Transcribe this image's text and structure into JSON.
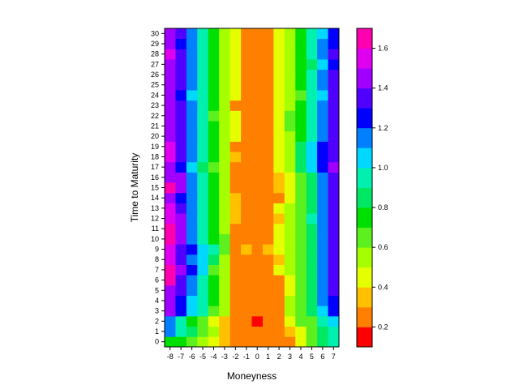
{
  "chart_data": {
    "type": "heatmap",
    "title": "",
    "xlabel": "Moneyness",
    "ylabel": "Time to Maturity",
    "x": [
      -8,
      -7,
      -6,
      -5,
      -4,
      -3,
      -2,
      -1,
      0,
      1,
      2,
      3,
      4,
      5,
      6,
      7
    ],
    "y": [
      0,
      1,
      2,
      3,
      4,
      5,
      6,
      7,
      8,
      9,
      10,
      11,
      12,
      13,
      14,
      15,
      16,
      17,
      18,
      19,
      20,
      21,
      22,
      23,
      24,
      25,
      26,
      27,
      28,
      29,
      30
    ],
    "color_scale": {
      "min": 0.1,
      "max": 1.7,
      "step": 0.1,
      "ticks": [
        "0.2",
        "0.4",
        "0.6",
        "0.8",
        "1.0",
        "1.2",
        "1.4",
        "1.6"
      ],
      "colors": [
        "#ff0000",
        "#ff8000",
        "#ffc000",
        "#e6ff00",
        "#a6ff00",
        "#5cf01e",
        "#00e000",
        "#00e864",
        "#00f0b0",
        "#00d8ff",
        "#0080ff",
        "#0000ff",
        "#5000ff",
        "#a000ff",
        "#e000f0",
        "#ff00b0"
      ]
    },
    "z": [
      [
        0.75,
        0.72,
        0.65,
        0.52,
        0.46,
        0.34,
        0.2,
        0.2,
        0.2,
        0.2,
        0.2,
        0.25,
        0.45,
        0.6,
        0.8,
        0.95
      ],
      [
        1.2,
        0.95,
        0.85,
        0.62,
        0.52,
        0.36,
        0.2,
        0.2,
        0.2,
        0.2,
        0.2,
        0.35,
        0.48,
        0.62,
        0.8,
        0.9
      ],
      [
        1.2,
        0.95,
        0.75,
        0.62,
        0.48,
        0.35,
        0.2,
        0.2,
        0.1,
        0.2,
        0.2,
        0.45,
        0.6,
        0.7,
        0.95,
        1.05
      ],
      [
        1.45,
        1.25,
        1.05,
        0.9,
        0.65,
        0.55,
        0.3,
        0.2,
        0.2,
        0.2,
        0.3,
        0.5,
        0.65,
        0.8,
        1.05,
        1.3
      ],
      [
        1.5,
        1.25,
        1.05,
        0.9,
        0.75,
        0.55,
        0.3,
        0.2,
        0.2,
        0.2,
        0.3,
        0.52,
        0.65,
        0.8,
        1.1,
        1.3
      ],
      [
        1.5,
        1.4,
        1.15,
        0.9,
        0.75,
        0.55,
        0.3,
        0.2,
        0.2,
        0.2,
        0.3,
        0.45,
        0.6,
        0.85,
        1.15,
        1.38
      ],
      [
        1.6,
        1.4,
        1.15,
        0.9,
        0.75,
        0.55,
        0.3,
        0.2,
        0.2,
        0.2,
        0.3,
        0.45,
        0.6,
        0.85,
        1.15,
        1.38
      ],
      [
        1.7,
        1.5,
        1.3,
        1.05,
        0.62,
        0.5,
        0.3,
        0.2,
        0.3,
        0.2,
        0.45,
        0.52,
        0.65,
        0.85,
        1.15,
        1.38
      ],
      [
        1.55,
        1.38,
        1.2,
        1.05,
        0.85,
        0.52,
        0.3,
        0.2,
        0.2,
        0.2,
        0.35,
        0.5,
        0.65,
        0.85,
        1.15,
        1.38
      ],
      [
        1.55,
        1.38,
        1.3,
        1.05,
        0.9,
        0.62,
        0.3,
        0.35,
        0.2,
        0.35,
        0.4,
        0.5,
        0.65,
        0.85,
        1.15,
        1.38
      ],
      [
        1.6,
        1.45,
        1.15,
        0.9,
        0.75,
        0.6,
        0.3,
        0.3,
        0.3,
        0.3,
        0.4,
        0.52,
        0.65,
        0.85,
        1.15,
        1.38
      ],
      [
        1.6,
        1.45,
        1.15,
        0.9,
        0.75,
        0.55,
        0.3,
        0.25,
        0.2,
        0.2,
        0.4,
        0.52,
        0.65,
        0.85,
        1.15,
        1.38
      ],
      [
        1.55,
        1.45,
        1.15,
        0.9,
        0.75,
        0.5,
        0.35,
        0.25,
        0.2,
        0.2,
        0.35,
        0.5,
        0.6,
        0.95,
        1.1,
        1.38
      ],
      [
        1.55,
        1.4,
        1.15,
        0.9,
        0.75,
        0.5,
        0.35,
        0.25,
        0.2,
        0.25,
        0.4,
        0.5,
        0.65,
        0.85,
        1.15,
        1.38
      ],
      [
        1.5,
        1.3,
        1.15,
        0.9,
        0.75,
        0.5,
        0.35,
        0.25,
        0.2,
        0.25,
        0.3,
        0.45,
        0.65,
        0.85,
        1.1,
        1.38
      ],
      [
        1.6,
        1.45,
        1.15,
        0.9,
        0.75,
        0.5,
        0.3,
        0.2,
        0.2,
        0.25,
        0.35,
        0.45,
        0.65,
        0.85,
        1.15,
        1.38
      ],
      [
        1.5,
        1.45,
        1.15,
        0.9,
        0.75,
        0.55,
        0.3,
        0.2,
        0.2,
        0.25,
        0.35,
        0.45,
        0.65,
        0.85,
        1.15,
        1.38
      ],
      [
        1.5,
        1.3,
        1.05,
        0.85,
        0.65,
        0.55,
        0.3,
        0.2,
        0.2,
        0.25,
        0.4,
        0.5,
        0.8,
        1.05,
        1.3,
        1.5
      ],
      [
        1.55,
        1.4,
        1.15,
        0.9,
        0.75,
        0.55,
        0.35,
        0.25,
        0.2,
        0.25,
        0.4,
        0.55,
        0.85,
        1.05,
        1.3,
        1.38
      ],
      [
        1.55,
        1.4,
        1.15,
        0.9,
        0.75,
        0.55,
        0.3,
        0.25,
        0.2,
        0.25,
        0.4,
        0.55,
        0.85,
        1.05,
        1.25,
        1.38
      ],
      [
        1.5,
        1.4,
        1.15,
        0.9,
        0.75,
        0.55,
        0.4,
        0.3,
        0.2,
        0.3,
        0.4,
        0.5,
        0.75,
        0.9,
        1.15,
        1.38
      ],
      [
        1.5,
        1.4,
        1.15,
        0.9,
        0.75,
        0.55,
        0.4,
        0.3,
        0.3,
        0.3,
        0.4,
        0.6,
        0.75,
        0.9,
        1.15,
        1.38
      ],
      [
        1.5,
        1.4,
        1.15,
        0.9,
        0.65,
        0.55,
        0.4,
        0.3,
        0.3,
        0.3,
        0.4,
        0.6,
        0.75,
        0.9,
        1.15,
        1.38
      ],
      [
        1.5,
        1.4,
        1.15,
        0.9,
        0.75,
        0.5,
        0.3,
        0.2,
        0.2,
        0.3,
        0.45,
        0.55,
        0.75,
        0.9,
        1.15,
        1.38
      ],
      [
        1.5,
        1.3,
        1.05,
        0.9,
        0.75,
        0.5,
        0.4,
        0.3,
        0.2,
        0.2,
        0.4,
        0.55,
        0.65,
        0.9,
        1.05,
        1.38
      ],
      [
        1.5,
        1.4,
        1.15,
        0.9,
        0.75,
        0.55,
        0.4,
        0.3,
        0.3,
        0.3,
        0.4,
        0.55,
        0.75,
        0.9,
        1.15,
        1.38
      ],
      [
        1.5,
        1.4,
        1.15,
        0.9,
        0.75,
        0.55,
        0.4,
        0.2,
        0.2,
        0.2,
        0.4,
        0.55,
        0.75,
        0.9,
        1.15,
        1.38
      ],
      [
        1.5,
        1.4,
        1.15,
        0.9,
        0.75,
        0.55,
        0.4,
        0.3,
        0.2,
        0.3,
        0.4,
        0.55,
        0.75,
        0.85,
        1.05,
        1.3
      ],
      [
        1.55,
        1.4,
        1.15,
        0.9,
        0.75,
        0.55,
        0.4,
        0.3,
        0.3,
        0.3,
        0.4,
        0.55,
        0.75,
        0.9,
        1.15,
        1.38
      ],
      [
        1.5,
        1.3,
        1.15,
        0.9,
        0.75,
        0.55,
        0.4,
        0.3,
        0.2,
        0.3,
        0.4,
        0.55,
        0.75,
        0.9,
        1.15,
        1.25
      ],
      [
        1.5,
        1.4,
        1.15,
        0.9,
        0.75,
        0.55,
        0.4,
        0.3,
        0.3,
        0.3,
        0.4,
        0.55,
        0.75,
        0.9,
        1.05,
        1.25
      ]
    ]
  }
}
